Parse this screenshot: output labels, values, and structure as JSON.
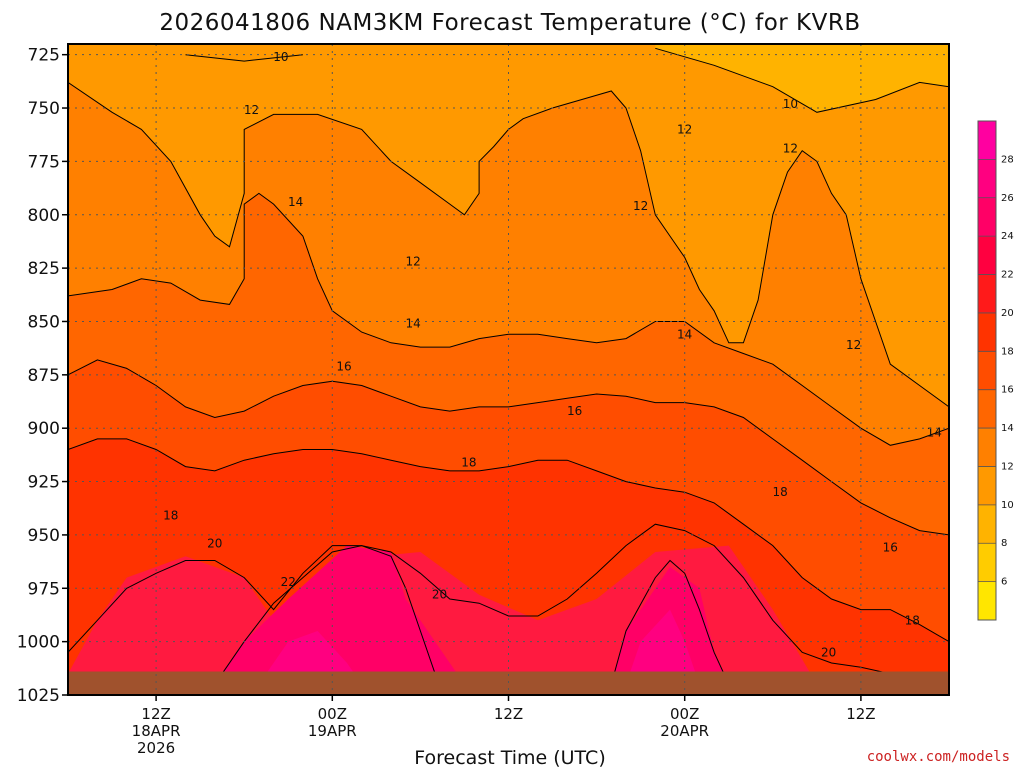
{
  "chart_data": {
    "type": "heatmap",
    "title": "2026041806 NAM3KM Forecast Temperature (°C) for KVRB",
    "xlabel": "Forecast Time (UTC)",
    "ylabel": "",
    "credit": "coolwx.com/models",
    "y_axis": {
      "ticks": [
        725,
        750,
        775,
        800,
        825,
        850,
        875,
        900,
        925,
        950,
        975,
        1000,
        1025
      ],
      "ylim": [
        1025,
        720
      ],
      "grid": true
    },
    "x_axis": {
      "xlim_hours": [
        0,
        60
      ],
      "ticks": [
        {
          "hour": 6,
          "line1": "12Z",
          "line2": "18APR",
          "line3": "2026"
        },
        {
          "hour": 18,
          "line1": "00Z",
          "line2": "19APR",
          "line3": ""
        },
        {
          "hour": 30,
          "line1": "12Z",
          "line2": "",
          "line3": ""
        },
        {
          "hour": 42,
          "line1": "00Z",
          "line2": "20APR",
          "line3": ""
        },
        {
          "hour": 54,
          "line1": "12Z",
          "line2": "",
          "line3": ""
        }
      ],
      "grid": true
    },
    "colorbar": {
      "levels": [
        4,
        6,
        8,
        10,
        12,
        14,
        16,
        18,
        20,
        22,
        24,
        26,
        28,
        30
      ],
      "colors": [
        "#ffe600",
        "#ffcc00",
        "#ffb300",
        "#ff9900",
        "#ff8000",
        "#ff6600",
        "#ff4d00",
        "#ff3300",
        "#ff1a1a",
        "#ff0040",
        "#ff0066",
        "#ff0080",
        "#ff00a0"
      ],
      "labels": [
        6,
        8,
        10,
        12,
        14,
        16,
        18,
        20,
        22,
        24,
        26,
        28
      ]
    },
    "bands": [
      {
        "temp_range": [
          20,
          22
        ],
        "color": "#ff1a40",
        "points": [
          [
            0,
            1015
          ],
          [
            2,
            990
          ],
          [
            4,
            970
          ],
          [
            8,
            960
          ],
          [
            12,
            970
          ],
          [
            14,
            990
          ],
          [
            18,
            962
          ],
          [
            24,
            958
          ],
          [
            28,
            978
          ],
          [
            32,
            990
          ],
          [
            36,
            980
          ],
          [
            40,
            958
          ],
          [
            45,
            955
          ],
          [
            48,
            985
          ],
          [
            51,
            1020
          ],
          [
            0,
            1020
          ]
        ]
      },
      {
        "temp_range": [
          22,
          24
        ],
        "color": "#ff0066",
        "points": [
          [
            10,
            1020
          ],
          [
            12,
            1000
          ],
          [
            15,
            980
          ],
          [
            19,
            955
          ],
          [
            22,
            958
          ],
          [
            23,
            980
          ],
          [
            26,
            1010
          ],
          [
            27,
            1020
          ]
        ]
      },
      {
        "temp_range": [
          22,
          24
        ],
        "color": "#ff0066",
        "points": [
          [
            37,
            1020
          ],
          [
            38,
            995
          ],
          [
            41,
            965
          ],
          [
            43,
            975
          ],
          [
            44,
            1005
          ],
          [
            45,
            1020
          ]
        ]
      },
      {
        "temp_range": [
          24,
          26
        ],
        "color": "#ff0080",
        "points": [
          [
            13,
            1020
          ],
          [
            15,
            1000
          ],
          [
            17,
            995
          ],
          [
            19,
            1010
          ],
          [
            20,
            1020
          ]
        ]
      },
      {
        "temp_range": [
          24,
          26
        ],
        "color": "#ff0080",
        "points": [
          [
            38,
            1020
          ],
          [
            39,
            1000
          ],
          [
            41,
            985
          ],
          [
            42,
            1000
          ],
          [
            43,
            1020
          ]
        ]
      }
    ],
    "contours": [
      {
        "value": 10,
        "points": [
          [
            8,
            725
          ],
          [
            12,
            728
          ],
          [
            16,
            725
          ]
        ]
      },
      {
        "value": 10,
        "points": [
          [
            40,
            722
          ],
          [
            44,
            730
          ],
          [
            48,
            740
          ],
          [
            51,
            752
          ],
          [
            55,
            746
          ],
          [
            58,
            738
          ],
          [
            60,
            740
          ]
        ]
      },
      {
        "value": 12,
        "points": [
          [
            0,
            738
          ],
          [
            3,
            752
          ],
          [
            5,
            760
          ],
          [
            7,
            775
          ],
          [
            9,
            800
          ],
          [
            10,
            810
          ],
          [
            11,
            815
          ],
          [
            12,
            790
          ],
          [
            12,
            760
          ],
          [
            14,
            753
          ],
          [
            17,
            753
          ],
          [
            20,
            760
          ],
          [
            22,
            775
          ],
          [
            24,
            785
          ],
          [
            26,
            795
          ],
          [
            27,
            800
          ],
          [
            28,
            790
          ],
          [
            28,
            775
          ],
          [
            29,
            768
          ],
          [
            30,
            760
          ],
          [
            31,
            755
          ],
          [
            33,
            750
          ],
          [
            35,
            746
          ],
          [
            37,
            742
          ],
          [
            38,
            750
          ],
          [
            39,
            770
          ],
          [
            40,
            800
          ],
          [
            41,
            810
          ],
          [
            42,
            820
          ],
          [
            43,
            835
          ],
          [
            44,
            845
          ],
          [
            45,
            860
          ],
          [
            46,
            860
          ],
          [
            47,
            840
          ],
          [
            48,
            800
          ],
          [
            49,
            780
          ],
          [
            50,
            770
          ],
          [
            51,
            775
          ],
          [
            52,
            790
          ],
          [
            53,
            800
          ],
          [
            54,
            830
          ],
          [
            55,
            850
          ],
          [
            56,
            870
          ],
          [
            58,
            880
          ],
          [
            60,
            890
          ]
        ]
      },
      {
        "value": 14,
        "points": [
          [
            0,
            838
          ],
          [
            3,
            835
          ],
          [
            5,
            830
          ],
          [
            7,
            832
          ],
          [
            9,
            840
          ],
          [
            11,
            842
          ],
          [
            12,
            830
          ],
          [
            12,
            795
          ],
          [
            13,
            790
          ],
          [
            14,
            795
          ],
          [
            16,
            810
          ],
          [
            17,
            830
          ],
          [
            18,
            845
          ],
          [
            20,
            855
          ],
          [
            22,
            860
          ],
          [
            24,
            862
          ],
          [
            26,
            862
          ],
          [
            28,
            858
          ],
          [
            30,
            856
          ],
          [
            32,
            856
          ],
          [
            34,
            858
          ],
          [
            36,
            860
          ],
          [
            38,
            858
          ],
          [
            40,
            850
          ],
          [
            42,
            850
          ],
          [
            44,
            860
          ],
          [
            46,
            865
          ],
          [
            48,
            870
          ],
          [
            50,
            880
          ],
          [
            52,
            890
          ],
          [
            54,
            900
          ],
          [
            56,
            908
          ],
          [
            58,
            905
          ],
          [
            60,
            900
          ]
        ]
      },
      {
        "value": 16,
        "points": [
          [
            0,
            875
          ],
          [
            2,
            868
          ],
          [
            4,
            872
          ],
          [
            6,
            880
          ],
          [
            8,
            890
          ],
          [
            10,
            895
          ],
          [
            12,
            892
          ],
          [
            14,
            885
          ],
          [
            16,
            880
          ],
          [
            18,
            878
          ],
          [
            20,
            880
          ],
          [
            22,
            885
          ],
          [
            24,
            890
          ],
          [
            26,
            892
          ],
          [
            28,
            890
          ],
          [
            30,
            890
          ],
          [
            32,
            888
          ],
          [
            34,
            886
          ],
          [
            36,
            884
          ],
          [
            38,
            885
          ],
          [
            40,
            888
          ],
          [
            42,
            888
          ],
          [
            44,
            890
          ],
          [
            46,
            895
          ],
          [
            48,
            905
          ],
          [
            50,
            915
          ],
          [
            52,
            925
          ],
          [
            54,
            935
          ],
          [
            56,
            942
          ],
          [
            58,
            948
          ],
          [
            60,
            950
          ]
        ]
      },
      {
        "value": 18,
        "points": [
          [
            0,
            910
          ],
          [
            2,
            905
          ],
          [
            4,
            905
          ],
          [
            6,
            910
          ],
          [
            8,
            918
          ],
          [
            10,
            920
          ],
          [
            12,
            915
          ],
          [
            14,
            912
          ],
          [
            16,
            910
          ],
          [
            18,
            910
          ],
          [
            20,
            912
          ],
          [
            22,
            915
          ],
          [
            24,
            918
          ],
          [
            26,
            920
          ],
          [
            28,
            920
          ],
          [
            30,
            918
          ],
          [
            32,
            915
          ],
          [
            34,
            915
          ],
          [
            36,
            920
          ],
          [
            38,
            925
          ],
          [
            40,
            928
          ],
          [
            42,
            930
          ],
          [
            44,
            935
          ],
          [
            46,
            945
          ],
          [
            48,
            955
          ],
          [
            50,
            970
          ],
          [
            52,
            980
          ],
          [
            54,
            985
          ],
          [
            56,
            985
          ],
          [
            58,
            992
          ],
          [
            60,
            1000
          ]
        ]
      },
      {
        "value": 20,
        "points": [
          [
            0,
            1005
          ],
          [
            2,
            990
          ],
          [
            4,
            975
          ],
          [
            6,
            968
          ],
          [
            8,
            962
          ],
          [
            10,
            962
          ],
          [
            12,
            970
          ],
          [
            14,
            985
          ],
          [
            16,
            968
          ],
          [
            18,
            955
          ],
          [
            20,
            955
          ],
          [
            22,
            958
          ],
          [
            24,
            968
          ],
          [
            26,
            980
          ],
          [
            28,
            982
          ],
          [
            30,
            988
          ],
          [
            32,
            988
          ],
          [
            34,
            980
          ],
          [
            36,
            968
          ],
          [
            38,
            955
          ],
          [
            40,
            945
          ],
          [
            42,
            948
          ],
          [
            44,
            955
          ],
          [
            46,
            970
          ],
          [
            48,
            990
          ],
          [
            50,
            1005
          ],
          [
            52,
            1010
          ],
          [
            54,
            1012
          ],
          [
            56,
            1015
          ],
          [
            58,
            1018
          ],
          [
            60,
            1022
          ]
        ]
      },
      {
        "value": 22,
        "points": [
          [
            10,
            1020
          ],
          [
            12,
            1000
          ],
          [
            14,
            982
          ],
          [
            16,
            970
          ],
          [
            18,
            958
          ],
          [
            20,
            955
          ],
          [
            22,
            960
          ],
          [
            23,
            975
          ],
          [
            24,
            995
          ],
          [
            25,
            1015
          ]
        ]
      },
      {
        "value": 22,
        "points": [
          [
            37,
            1020
          ],
          [
            38,
            995
          ],
          [
            40,
            970
          ],
          [
            41,
            962
          ],
          [
            42,
            968
          ],
          [
            43,
            985
          ],
          [
            44,
            1005
          ],
          [
            45,
            1020
          ]
        ]
      }
    ],
    "contour_labels": [
      {
        "text": "10",
        "hour": 14.5,
        "p": 726
      },
      {
        "text": "12",
        "hour": 12.5,
        "p": 751
      },
      {
        "text": "14",
        "hour": 15.5,
        "p": 794
      },
      {
        "text": "12",
        "hour": 23.5,
        "p": 822
      },
      {
        "text": "14",
        "hour": 23.5,
        "p": 851
      },
      {
        "text": "16",
        "hour": 18.8,
        "p": 871
      },
      {
        "text": "12",
        "hour": 39.0,
        "p": 796
      },
      {
        "text": "12",
        "hour": 42.0,
        "p": 760
      },
      {
        "text": "10",
        "hour": 49.2,
        "p": 748
      },
      {
        "text": "12",
        "hour": 49.2,
        "p": 769
      },
      {
        "text": "14",
        "hour": 42.0,
        "p": 856
      },
      {
        "text": "12",
        "hour": 53.5,
        "p": 861
      },
      {
        "text": "16",
        "hour": 34.5,
        "p": 892
      },
      {
        "text": "18",
        "hour": 27.3,
        "p": 916
      },
      {
        "text": "18",
        "hour": 7.0,
        "p": 941
      },
      {
        "text": "14",
        "hour": 59.0,
        "p": 902
      },
      {
        "text": "18",
        "hour": 48.5,
        "p": 930
      },
      {
        "text": "20",
        "hour": 10.0,
        "p": 954
      },
      {
        "text": "22",
        "hour": 15.0,
        "p": 972
      },
      {
        "text": "20",
        "hour": 25.3,
        "p": 978
      },
      {
        "text": "16",
        "hour": 56.0,
        "p": 956
      },
      {
        "text": "18",
        "hour": 57.5,
        "p": 990
      },
      {
        "text": "20",
        "hour": 51.8,
        "p": 1005
      }
    ],
    "ground_level_p": 1014
  }
}
